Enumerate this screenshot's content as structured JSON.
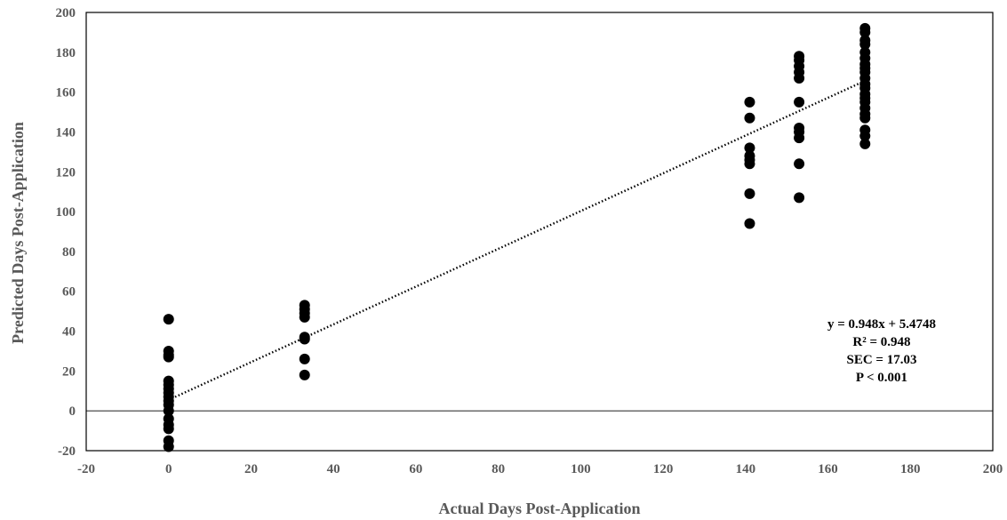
{
  "chart_data": {
    "type": "scatter",
    "title": "",
    "xlabel": "Actual Days Post-Application",
    "ylabel": "Predicted Days Post-Application",
    "xlim": [
      -20,
      200
    ],
    "ylim": [
      -20,
      200
    ],
    "xticks": [
      -20,
      0,
      20,
      40,
      60,
      80,
      100,
      120,
      140,
      160,
      180,
      200
    ],
    "yticks": [
      -20,
      0,
      20,
      40,
      60,
      80,
      100,
      120,
      140,
      160,
      180,
      200
    ],
    "grid": false,
    "legend": "none",
    "marker_color": "#000000",
    "series": [
      {
        "points": [
          [
            0,
            46
          ],
          [
            0,
            30
          ],
          [
            0,
            28
          ],
          [
            0,
            27
          ],
          [
            0,
            15
          ],
          [
            0,
            13
          ],
          [
            0,
            11
          ],
          [
            0,
            9
          ],
          [
            0,
            7
          ],
          [
            0,
            5
          ],
          [
            0,
            3
          ],
          [
            0,
            0
          ],
          [
            0,
            -4
          ],
          [
            0,
            -7
          ],
          [
            0,
            -9
          ],
          [
            0,
            -15
          ],
          [
            0,
            -18
          ],
          [
            33,
            53
          ],
          [
            33,
            51
          ],
          [
            33,
            49
          ],
          [
            33,
            47
          ],
          [
            33,
            37
          ],
          [
            33,
            36
          ],
          [
            33,
            26
          ],
          [
            33,
            18
          ],
          [
            141,
            155
          ],
          [
            141,
            147
          ],
          [
            141,
            132
          ],
          [
            141,
            128
          ],
          [
            141,
            126
          ],
          [
            141,
            124
          ],
          [
            141,
            109
          ],
          [
            141,
            94
          ],
          [
            153,
            178
          ],
          [
            153,
            176
          ],
          [
            153,
            173
          ],
          [
            153,
            170
          ],
          [
            153,
            167
          ],
          [
            153,
            155
          ],
          [
            153,
            142
          ],
          [
            153,
            140
          ],
          [
            153,
            137
          ],
          [
            153,
            124
          ],
          [
            153,
            107
          ],
          [
            169,
            192
          ],
          [
            169,
            190
          ],
          [
            169,
            186
          ],
          [
            169,
            184
          ],
          [
            169,
            180
          ],
          [
            169,
            177
          ],
          [
            169,
            174
          ],
          [
            169,
            172
          ],
          [
            169,
            170
          ],
          [
            169,
            167
          ],
          [
            169,
            164
          ],
          [
            169,
            162
          ],
          [
            169,
            159
          ],
          [
            169,
            157
          ],
          [
            169,
            155
          ],
          [
            169,
            152
          ],
          [
            169,
            149
          ],
          [
            169,
            147
          ],
          [
            169,
            141
          ],
          [
            169,
            138
          ],
          [
            169,
            134
          ]
        ]
      }
    ],
    "trendline": {
      "slope": 0.948,
      "intercept": 5.4748,
      "x_range": [
        0,
        169
      ],
      "style": "dotted"
    },
    "annotations": [
      "y = 0.948x + 5.4748",
      "R² = 0.948",
      "SEC = 17.03",
      "P < 0.001"
    ]
  }
}
